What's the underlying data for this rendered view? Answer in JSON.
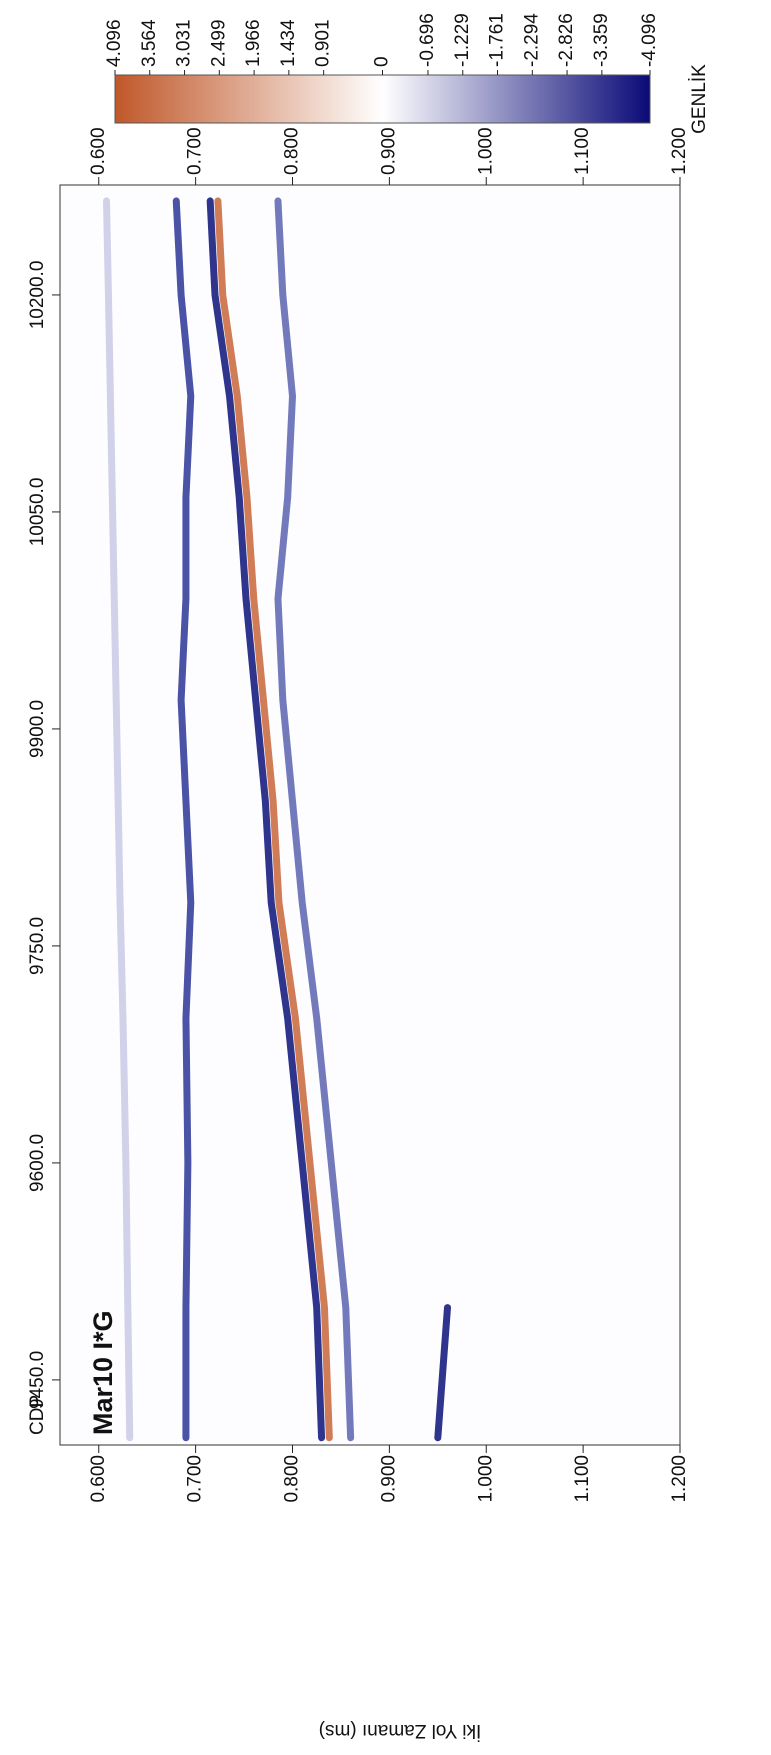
{
  "chart_data": {
    "type": "line",
    "title": "Mar10 I*G",
    "x_label": "CDP",
    "y_label": "İki Yol Zamanı (ms)",
    "x": [
      9410,
      9500,
      9600,
      9700,
      9780,
      9850,
      9920,
      9990,
      10060,
      10130,
      10200,
      10265
    ],
    "series": [
      {
        "color": "#c9c9e6",
        "values": [
          0.632,
          0.63,
          0.628,
          0.625,
          0.622,
          0.62,
          0.618,
          0.616,
          0.614,
          0.612,
          0.61,
          0.608
        ]
      },
      {
        "color": "#2a3596",
        "values": [
          0.69,
          0.69,
          0.692,
          0.69,
          0.695,
          0.69,
          0.685,
          0.69,
          0.69,
          0.695,
          0.685,
          0.68
        ]
      },
      {
        "color": "#0a1078",
        "values": [
          0.83,
          0.825,
          0.81,
          0.795,
          0.778,
          0.772,
          0.762,
          0.752,
          0.745,
          0.735,
          0.72,
          0.715
        ]
      },
      {
        "color": "#c8663a",
        "values": [
          0.838,
          0.833,
          0.818,
          0.803,
          0.786,
          0.78,
          0.77,
          0.76,
          0.753,
          0.743,
          0.728,
          0.723
        ]
      },
      {
        "color": "#5a63b0",
        "values": [
          0.86,
          0.855,
          0.84,
          0.825,
          0.81,
          0.8,
          0.79,
          0.785,
          0.795,
          0.8,
          0.79,
          0.785
        ]
      },
      {
        "color": "#0a1078",
        "values": [
          0.95,
          0.96,
          null,
          null,
          null,
          null,
          null,
          null,
          null,
          null,
          null,
          null
        ]
      }
    ],
    "xlim": [
      9405,
      10276
    ],
    "ylim": [
      0.56,
      1.2
    ],
    "xticks": [
      {
        "value": 9450,
        "label": "9450.0"
      },
      {
        "value": 9600,
        "label": "9600.0"
      },
      {
        "value": 9750,
        "label": "9750.0"
      },
      {
        "value": 9900,
        "label": "9900.0"
      },
      {
        "value": 10050,
        "label": "10050.0"
      },
      {
        "value": 10200,
        "label": "10200.0"
      }
    ],
    "yticks": [
      {
        "value": 0.6,
        "label": "0.600"
      },
      {
        "value": 0.7,
        "label": "0.700"
      },
      {
        "value": 0.8,
        "label": "0.800"
      },
      {
        "value": 0.9,
        "label": "0.900"
      },
      {
        "value": 1.0,
        "label": "1.000"
      },
      {
        "value": 1.1,
        "label": "1.100"
      },
      {
        "value": 1.2,
        "label": "1.200"
      }
    ],
    "colorbar": {
      "label": "GENLİK",
      "range": [
        -4.096,
        4.096
      ],
      "colors": [
        "#c0582a",
        "#ffffff",
        "#0a0a78"
      ],
      "ticks": [
        4.096,
        3.564,
        3.031,
        2.499,
        1.966,
        1.434,
        0.901,
        0,
        -0.696,
        -1.229,
        -1.761,
        -2.294,
        -2.826,
        -3.359,
        -4.096
      ]
    }
  }
}
